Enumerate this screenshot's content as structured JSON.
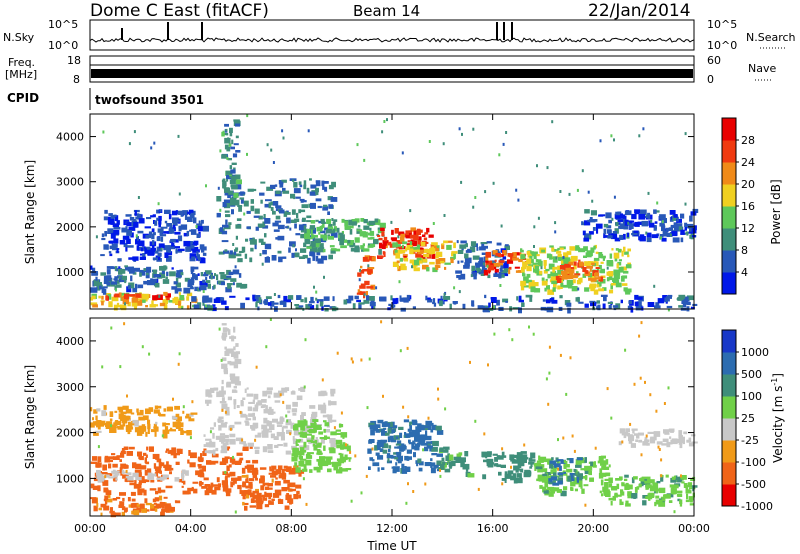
{
  "header": {
    "station": "Dome C East (fitACF)",
    "beam": "Beam 14",
    "date": "22/Jan/2014"
  },
  "status_panel": {
    "nsky_label": "N.Sky",
    "nsky_ticks": [
      "10^5",
      "10^0"
    ],
    "nsearch_label": "N.Search",
    "nsearch_ticks": [
      "10^5",
      "10^0"
    ],
    "freq_label_1": "Freq.",
    "freq_label_2": "[MHz]",
    "freq_ticks": [
      "18",
      "8"
    ],
    "nave_label": "Nave",
    "nave_ticks": [
      "60",
      "0"
    ],
    "cpid_label": "CPID",
    "cpid_value": "twofsound 3501"
  },
  "chart_data": [
    {
      "type": "heatmap",
      "title": "",
      "xlabel": "",
      "ylabel": "Slant Range [km]",
      "xlim": [
        0,
        24
      ],
      "ylim": [
        180,
        4500
      ],
      "yticks": [
        1000,
        2000,
        3000,
        4000
      ],
      "colorbar": {
        "label": "Power [dB]",
        "ticks": [
          "4",
          "8",
          "12",
          "16",
          "20",
          "24",
          "28"
        ],
        "colors": [
          "#0018e8",
          "#2858b8",
          "#3f8e7a",
          "#5ec85a",
          "#f0d020",
          "#f08a18",
          "#f03a10",
          "#e80000"
        ]
      },
      "regions": [
        {
          "t0": 0.0,
          "t1": 4.2,
          "r0": 250,
          "r1": 560,
          "value": 18
        },
        {
          "t0": 0.5,
          "t1": 3.2,
          "r0": 420,
          "r1": 560,
          "value": 26
        },
        {
          "t0": 0.0,
          "t1": 6.0,
          "r0": 620,
          "r1": 1150,
          "value": 7
        },
        {
          "t0": 0.4,
          "t1": 4.5,
          "r0": 1300,
          "r1": 2400,
          "value": 4
        },
        {
          "t0": 5.0,
          "t1": 9.6,
          "r0": 1300,
          "r1": 3100,
          "value": 8
        },
        {
          "t0": 5.2,
          "t1": 5.8,
          "r0": 2500,
          "r1": 4400,
          "value": 10
        },
        {
          "t0": 8.5,
          "t1": 11.6,
          "r0": 1500,
          "r1": 2200,
          "value": 12
        },
        {
          "t0": 10.6,
          "t1": 11.2,
          "r0": 500,
          "r1": 1400,
          "value": 24
        },
        {
          "t0": 11.4,
          "t1": 13.6,
          "r0": 1350,
          "r1": 2000,
          "value": 27
        },
        {
          "t0": 12.0,
          "t1": 14.5,
          "r0": 1100,
          "r1": 1700,
          "value": 18
        },
        {
          "t0": 14.5,
          "t1": 16.5,
          "r0": 900,
          "r1": 1700,
          "value": 7
        },
        {
          "t0": 15.6,
          "t1": 17.3,
          "r0": 1000,
          "r1": 1500,
          "value": 26
        },
        {
          "t0": 17.0,
          "t1": 21.4,
          "r0": 600,
          "r1": 1600,
          "value": 16
        },
        {
          "t0": 18.5,
          "t1": 20.2,
          "r0": 850,
          "r1": 1300,
          "value": 24
        },
        {
          "t0": 19.5,
          "t1": 24.0,
          "r0": 1750,
          "r1": 2400,
          "value": 5
        },
        {
          "t0": 4.0,
          "t1": 24.0,
          "r0": 200,
          "r1": 500,
          "value": 6
        }
      ]
    },
    {
      "type": "heatmap",
      "title": "",
      "xlabel": "Time UT",
      "ylabel": "Slant Range [km]",
      "xlim": [
        0,
        24
      ],
      "ylim": [
        180,
        4500
      ],
      "xticks": [
        "00:00",
        "04:00",
        "08:00",
        "12:00",
        "16:00",
        "20:00",
        "00:00"
      ],
      "yticks": [
        1000,
        2000,
        3000,
        4000
      ],
      "colorbar": {
        "label": "Velocity [m s^-1]",
        "ticks": [
          "1000",
          "500",
          "100",
          "25",
          "-25",
          "-100",
          "-500",
          "-1000"
        ],
        "colors": [
          "#1838c8",
          "#2c6cb0",
          "#3f8e7a",
          "#70d048",
          "#c8c8c8",
          "#f09a18",
          "#f06418",
          "#e80000"
        ]
      },
      "regions": [
        {
          "t0": 0.0,
          "t1": 3.4,
          "r0": 250,
          "r1": 650,
          "value": -120
        },
        {
          "t0": 0.0,
          "t1": 6.5,
          "r0": 700,
          "r1": 1700,
          "value": -200
        },
        {
          "t0": 0.2,
          "t1": 3.8,
          "r0": 1000,
          "r1": 1200,
          "value": 0
        },
        {
          "t0": 0.0,
          "t1": 4.0,
          "r0": 2000,
          "r1": 2600,
          "value": -40
        },
        {
          "t0": 4.5,
          "t1": 9.6,
          "r0": 1600,
          "r1": 3000,
          "value": 0
        },
        {
          "t0": 5.2,
          "t1": 5.8,
          "r0": 3000,
          "r1": 4400,
          "value": 0
        },
        {
          "t0": 6.0,
          "t1": 8.3,
          "r0": 400,
          "r1": 1300,
          "value": -160
        },
        {
          "t0": 8.0,
          "t1": 10.2,
          "r0": 1200,
          "r1": 2300,
          "value": 60
        },
        {
          "t0": 11.0,
          "t1": 13.8,
          "r0": 1200,
          "r1": 2300,
          "value": 700
        },
        {
          "t0": 13.8,
          "t1": 15.0,
          "r0": 1100,
          "r1": 1700,
          "value": 120
        },
        {
          "t0": 15.5,
          "t1": 17.6,
          "r0": 1000,
          "r1": 1600,
          "value": 200
        },
        {
          "t0": 17.6,
          "t1": 20.5,
          "r0": 700,
          "r1": 1500,
          "value": 80
        },
        {
          "t0": 18.2,
          "t1": 19.4,
          "r0": 900,
          "r1": 1500,
          "value": 600
        },
        {
          "t0": 20.5,
          "t1": 24.0,
          "r0": 450,
          "r1": 1100,
          "value": 80
        },
        {
          "t0": 21.0,
          "t1": 24.0,
          "r0": 1750,
          "r1": 2100,
          "value": 0
        }
      ]
    }
  ]
}
